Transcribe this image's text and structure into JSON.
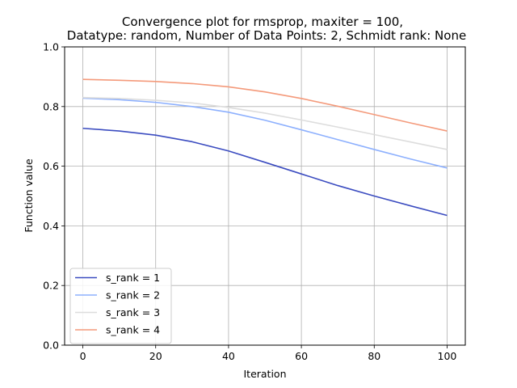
{
  "chart_data": {
    "type": "line",
    "title_line1": "Convergence plot for rmsprop, maxiter = 100,",
    "title_line2": "Datatype: random, Number of Data Points: 2, Schmidt rank: None",
    "xlabel": "Iteration",
    "ylabel": "Function value",
    "xlim": [
      -5,
      105
    ],
    "ylim": [
      0.0,
      1.0
    ],
    "xticks": [
      0,
      20,
      40,
      60,
      80,
      100
    ],
    "yticks": [
      0.0,
      0.2,
      0.4,
      0.6,
      0.8,
      1.0
    ],
    "xtick_labels": [
      "0",
      "20",
      "40",
      "60",
      "80",
      "100"
    ],
    "ytick_labels": [
      "0.0",
      "0.2",
      "0.4",
      "0.6",
      "0.8",
      "1.0"
    ],
    "grid": true,
    "legend_position": "lower-left",
    "x": [
      0,
      10,
      20,
      30,
      40,
      50,
      60,
      70,
      80,
      90,
      100
    ],
    "series": [
      {
        "name": "s_rank = 1",
        "color": "#3b4cc0",
        "values": [
          0.727,
          0.718,
          0.704,
          0.682,
          0.651,
          0.613,
          0.574,
          0.535,
          0.5,
          0.467,
          0.435
        ]
      },
      {
        "name": "s_rank = 2",
        "color": "#8db0fe",
        "values": [
          0.828,
          0.823,
          0.814,
          0.8,
          0.781,
          0.754,
          0.722,
          0.689,
          0.656,
          0.624,
          0.594
        ]
      },
      {
        "name": "s_rank = 3",
        "color": "#dddddd",
        "values": [
          0.83,
          0.827,
          0.821,
          0.812,
          0.797,
          0.778,
          0.755,
          0.731,
          0.706,
          0.681,
          0.656
        ]
      },
      {
        "name": "s_rank = 4",
        "color": "#f49a7b",
        "values": [
          0.891,
          0.888,
          0.884,
          0.877,
          0.866,
          0.849,
          0.827,
          0.801,
          0.773,
          0.745,
          0.718
        ]
      }
    ]
  }
}
